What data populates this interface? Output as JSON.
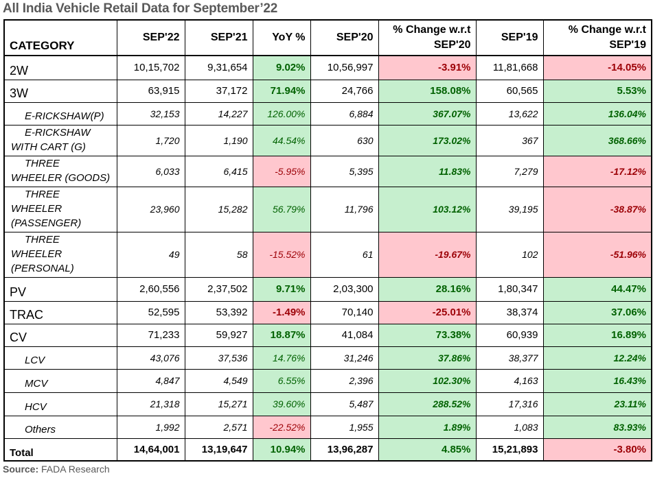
{
  "title": "All India Vehicle Retail Data for September’22",
  "source": {
    "label": "Source:",
    "value": "FADA Research"
  },
  "colors": {
    "positive_bg": "#c6efce",
    "positive_text": "#006100",
    "negative_bg": "#ffc7ce",
    "negative_text": "#9c0006"
  },
  "headers": [
    "CATEGORY",
    "SEP'22",
    "SEP'21",
    "YoY %",
    "SEP'20",
    "% Change w.r.t SEP'20",
    "SEP'19",
    "% Change w.r.t SEP'19"
  ],
  "rows": [
    {
      "type": "main",
      "cat": "2W",
      "v": [
        "10,15,702",
        "9,31,654",
        "9.02%",
        "10,56,997",
        "-3.91%",
        "11,81,668",
        "-14.05%"
      ]
    },
    {
      "type": "main",
      "cat": "3W",
      "v": [
        "63,915",
        "37,172",
        "71.94%",
        "24,766",
        "158.08%",
        "60,565",
        "5.53%"
      ]
    },
    {
      "type": "sub",
      "cat": "E-RICKSHAW(P)",
      "v": [
        "32,153",
        "14,227",
        "126.00%",
        "6,884",
        "367.07%",
        "13,622",
        "136.04%"
      ]
    },
    {
      "type": "sub",
      "cat": "E-RICKSHAW WITH CART (G)",
      "v": [
        "1,720",
        "1,190",
        "44.54%",
        "630",
        "173.02%",
        "367",
        "368.66%"
      ]
    },
    {
      "type": "sub",
      "cat": "THREE WHEELER (GOODS)",
      "v": [
        "6,033",
        "6,415",
        "-5.95%",
        "5,395",
        "11.83%",
        "7,279",
        "-17.12%"
      ]
    },
    {
      "type": "sub",
      "cat": "THREE WHEELER (PASSENGER)",
      "v": [
        "23,960",
        "15,282",
        "56.79%",
        "11,796",
        "103.12%",
        "39,195",
        "-38.87%"
      ]
    },
    {
      "type": "sub",
      "cat": "THREE WHEELER (PERSONAL)",
      "v": [
        "49",
        "58",
        "-15.52%",
        "61",
        "-19.67%",
        "102",
        "-51.96%"
      ]
    },
    {
      "type": "main",
      "cat": "PV",
      "v": [
        "2,60,556",
        "2,37,502",
        "9.71%",
        "2,03,300",
        "28.16%",
        "1,80,347",
        "44.47%"
      ]
    },
    {
      "type": "main",
      "cat": "TRAC",
      "v": [
        "52,595",
        "53,392",
        "-1.49%",
        "70,140",
        "-25.01%",
        "38,374",
        "37.06%"
      ]
    },
    {
      "type": "main",
      "cat": "CV",
      "v": [
        "71,233",
        "59,927",
        "18.87%",
        "41,084",
        "73.38%",
        "60,939",
        "16.89%"
      ]
    },
    {
      "type": "sub",
      "cat": "LCV",
      "v": [
        "43,076",
        "37,536",
        "14.76%",
        "31,246",
        "37.86%",
        "38,377",
        "12.24%"
      ]
    },
    {
      "type": "sub",
      "cat": "MCV",
      "v": [
        "4,847",
        "4,549",
        "6.55%",
        "2,396",
        "102.30%",
        "4,163",
        "16.43%"
      ]
    },
    {
      "type": "sub",
      "cat": "HCV",
      "v": [
        "21,318",
        "15,271",
        "39.60%",
        "5,487",
        "288.52%",
        "17,316",
        "23.11%"
      ]
    },
    {
      "type": "sub",
      "cat": "Others",
      "v": [
        "1,992",
        "2,571",
        "-22.52%",
        "1,955",
        "1.89%",
        "1,083",
        "83.93%"
      ]
    },
    {
      "type": "total",
      "cat": "Total",
      "v": [
        "14,64,001",
        "13,19,647",
        "10.94%",
        "13,96,287",
        "4.85%",
        "15,21,893",
        "-3.80%"
      ]
    }
  ]
}
